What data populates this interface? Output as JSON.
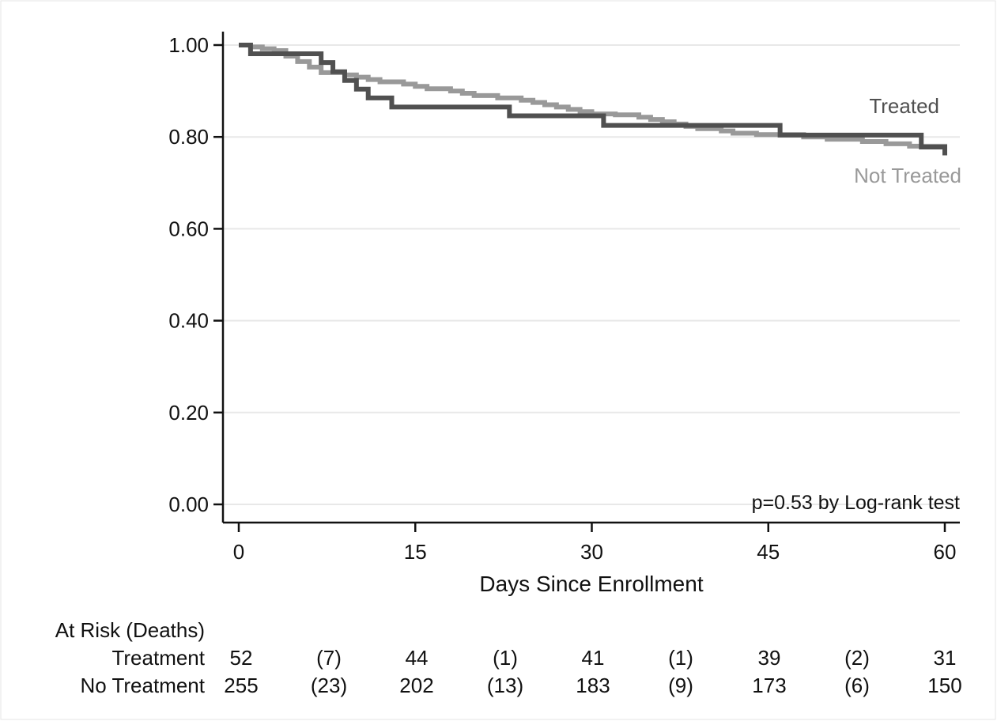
{
  "chart_data": {
    "type": "line",
    "subtype": "kaplan-meier",
    "xlabel": "Days Since Enrollment",
    "ylabel": "",
    "xlim": [
      0,
      60
    ],
    "ylim": [
      0,
      1
    ],
    "x_ticks": [
      "0",
      "15",
      "30",
      "45",
      "60"
    ],
    "x_tick_values": [
      0,
      15,
      30,
      45,
      60
    ],
    "y_ticks": [
      "0.00",
      "0.20",
      "0.40",
      "0.60",
      "0.80",
      "1.00"
    ],
    "y_tick_values": [
      0,
      0.2,
      0.4,
      0.6,
      0.8,
      1.0
    ],
    "grid": "horizontal",
    "annotation": "p=0.53 by Log-rank test",
    "series": [
      {
        "name": "Treated",
        "color": "#505050",
        "steps": [
          [
            0,
            1.0
          ],
          [
            1,
            0.981
          ],
          [
            7,
            0.962
          ],
          [
            8,
            0.942
          ],
          [
            9,
            0.923
          ],
          [
            10,
            0.904
          ],
          [
            11,
            0.885
          ],
          [
            13,
            0.865
          ],
          [
            23,
            0.846
          ],
          [
            31,
            0.825
          ],
          [
            46,
            0.804
          ],
          [
            58,
            0.778
          ],
          [
            60,
            0.76
          ]
        ]
      },
      {
        "name": "Not Treated",
        "color": "#999999",
        "steps": [
          [
            0,
            1.0
          ],
          [
            1,
            0.996
          ],
          [
            2,
            0.992
          ],
          [
            3,
            0.988
          ],
          [
            4,
            0.976
          ],
          [
            5,
            0.964
          ],
          [
            6,
            0.952
          ],
          [
            7,
            0.94
          ],
          [
            9,
            0.935
          ],
          [
            10,
            0.93
          ],
          [
            11,
            0.925
          ],
          [
            12,
            0.92
          ],
          [
            14,
            0.915
          ],
          [
            15,
            0.91
          ],
          [
            16,
            0.905
          ],
          [
            18,
            0.9
          ],
          [
            19,
            0.895
          ],
          [
            20,
            0.89
          ],
          [
            22,
            0.885
          ],
          [
            24,
            0.88
          ],
          [
            25,
            0.875
          ],
          [
            26,
            0.87
          ],
          [
            27,
            0.865
          ],
          [
            28,
            0.86
          ],
          [
            29,
            0.855
          ],
          [
            30,
            0.85
          ],
          [
            32,
            0.848
          ],
          [
            34,
            0.843
          ],
          [
            35,
            0.838
          ],
          [
            36,
            0.833
          ],
          [
            37,
            0.828
          ],
          [
            38,
            0.823
          ],
          [
            39,
            0.818
          ],
          [
            41,
            0.813
          ],
          [
            42,
            0.808
          ],
          [
            44,
            0.805
          ],
          [
            48,
            0.8
          ],
          [
            50,
            0.795
          ],
          [
            53,
            0.79
          ],
          [
            55,
            0.785
          ],
          [
            57,
            0.78
          ],
          [
            60,
            0.775
          ]
        ]
      }
    ],
    "risk_table": {
      "header": "At Risk (Deaths)",
      "rows": [
        {
          "label": "Treatment",
          "values": [
            "52",
            "(7)",
            "44",
            "(1)",
            "41",
            "(1)",
            "39",
            "(2)",
            "31"
          ]
        },
        {
          "label": "No Treatment",
          "values": [
            "255",
            "(23)",
            "202",
            "(13)",
            "183",
            "(9)",
            "173",
            "(6)",
            "150"
          ]
        }
      ]
    }
  }
}
